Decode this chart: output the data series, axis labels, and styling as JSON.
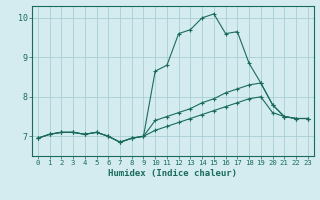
{
  "background_color": "#d4ecf0",
  "grid_color": "#aacdd5",
  "line_color": "#1a6b5a",
  "xlabel": "Humidex (Indice chaleur)",
  "xlim": [
    -0.5,
    23.5
  ],
  "ylim": [
    6.5,
    10.3
  ],
  "yticks": [
    7,
    8,
    9,
    10
  ],
  "xticks": [
    0,
    1,
    2,
    3,
    4,
    5,
    6,
    7,
    8,
    9,
    10,
    11,
    12,
    13,
    14,
    15,
    16,
    17,
    18,
    19,
    20,
    21,
    22,
    23
  ],
  "line1_x": [
    0,
    1,
    2,
    3,
    4,
    5,
    6,
    7,
    8,
    9,
    10,
    11,
    12,
    13,
    14,
    15,
    16,
    17,
    18,
    19,
    20,
    21,
    22,
    23
  ],
  "line1_y": [
    6.95,
    7.05,
    7.1,
    7.1,
    7.05,
    7.1,
    7.0,
    6.85,
    6.95,
    7.0,
    8.65,
    8.8,
    9.6,
    9.7,
    10.0,
    10.1,
    9.6,
    9.65,
    8.85,
    8.35,
    7.8,
    7.5,
    7.45,
    7.45
  ],
  "line2_x": [
    0,
    1,
    2,
    3,
    4,
    5,
    6,
    7,
    8,
    9,
    10,
    11,
    12,
    13,
    14,
    15,
    16,
    17,
    18,
    19,
    20,
    21,
    22,
    23
  ],
  "line2_y": [
    6.95,
    7.05,
    7.1,
    7.1,
    7.05,
    7.1,
    7.0,
    6.85,
    6.95,
    7.0,
    7.4,
    7.5,
    7.6,
    7.7,
    7.85,
    7.95,
    8.1,
    8.2,
    8.3,
    8.35,
    7.8,
    7.5,
    7.45,
    7.45
  ],
  "line3_x": [
    0,
    1,
    2,
    3,
    4,
    5,
    6,
    7,
    8,
    9,
    10,
    11,
    12,
    13,
    14,
    15,
    16,
    17,
    18,
    19,
    20,
    21,
    22,
    23
  ],
  "line3_y": [
    6.95,
    7.05,
    7.1,
    7.1,
    7.05,
    7.1,
    7.0,
    6.85,
    6.95,
    7.0,
    7.15,
    7.25,
    7.35,
    7.45,
    7.55,
    7.65,
    7.75,
    7.85,
    7.95,
    8.0,
    7.6,
    7.5,
    7.45,
    7.45
  ]
}
